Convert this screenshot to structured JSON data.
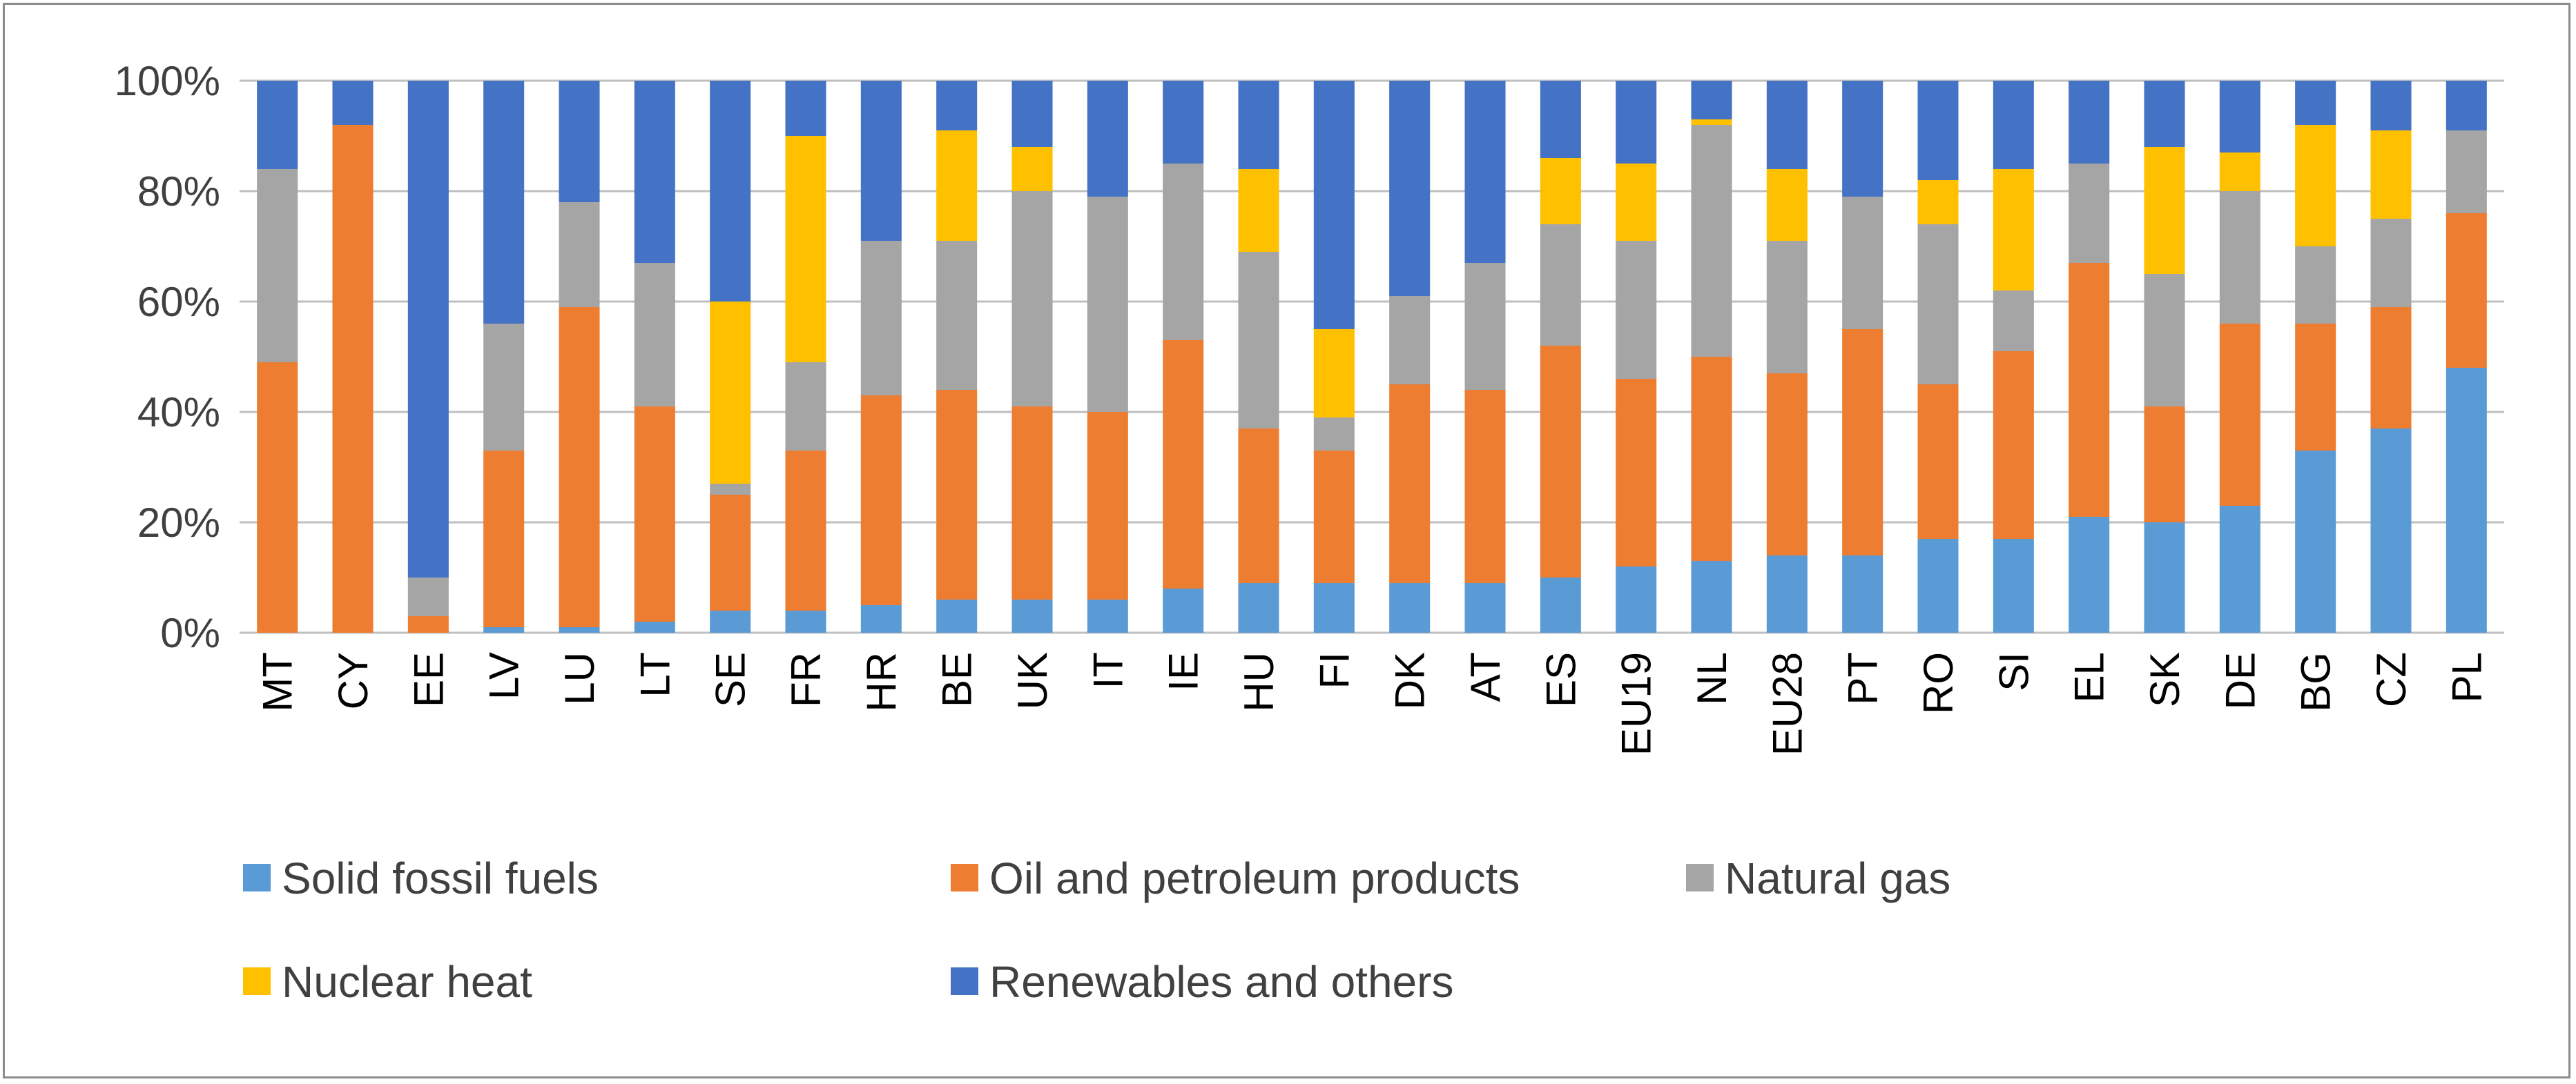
{
  "chart_data": {
    "type": "bar",
    "stacked": true,
    "percent": true,
    "title": "",
    "xlabel": "",
    "ylabel": "",
    "ylim": [
      0,
      100
    ],
    "yticks": [
      "0%",
      "20%",
      "40%",
      "60%",
      "80%",
      "100%"
    ],
    "grid": true,
    "legend_position": "bottom",
    "categories": [
      "MT",
      "CY",
      "EE",
      "LV",
      "LU",
      "LT",
      "SE",
      "FR",
      "HR",
      "BE",
      "UK",
      "IT",
      "IE",
      "HU",
      "FI",
      "DK",
      "AT",
      "ES",
      "EU19",
      "NL",
      "EU28",
      "PT",
      "RO",
      "SI",
      "EL",
      "SK",
      "DE",
      "BG",
      "CZ",
      "PL"
    ],
    "series": [
      {
        "name": "Solid fossil fuels",
        "color": "#5B9BD5",
        "values": [
          0,
          0,
          0,
          1,
          1,
          2,
          4,
          4,
          5,
          6,
          6,
          6,
          8,
          9,
          9,
          9,
          9,
          10,
          12,
          13,
          14,
          14,
          17,
          17,
          21,
          20,
          23,
          33,
          37,
          48
        ]
      },
      {
        "name": "Oil and petroleum products",
        "color": "#ED7D31",
        "values": [
          49,
          92,
          3,
          32,
          58,
          39,
          21,
          29,
          38,
          38,
          35,
          34,
          45,
          28,
          24,
          36,
          35,
          42,
          34,
          37,
          33,
          41,
          28,
          34,
          46,
          21,
          33,
          23,
          22,
          28
        ]
      },
      {
        "name": "Natural gas",
        "color": "#A5A5A5",
        "values": [
          35,
          0,
          7,
          23,
          19,
          26,
          2,
          16,
          28,
          27,
          39,
          39,
          32,
          32,
          6,
          16,
          23,
          22,
          25,
          42,
          24,
          24,
          29,
          11,
          18,
          24,
          24,
          14,
          16,
          15
        ]
      },
      {
        "name": "Nuclear heat",
        "color": "#FFC000",
        "values": [
          0,
          0,
          0,
          0,
          0,
          0,
          33,
          41,
          0,
          20,
          8,
          0,
          0,
          15,
          16,
          0,
          0,
          12,
          14,
          1,
          13,
          0,
          8,
          22,
          0,
          23,
          7,
          22,
          16,
          0
        ]
      },
      {
        "name": "Renewables and others",
        "color": "#4472C4",
        "values": [
          16,
          8,
          90,
          44,
          22,
          33,
          40,
          10,
          29,
          9,
          12,
          21,
          15,
          16,
          45,
          39,
          33,
          14,
          15,
          7,
          16,
          21,
          18,
          16,
          15,
          12,
          13,
          8,
          9,
          9
        ]
      }
    ]
  }
}
